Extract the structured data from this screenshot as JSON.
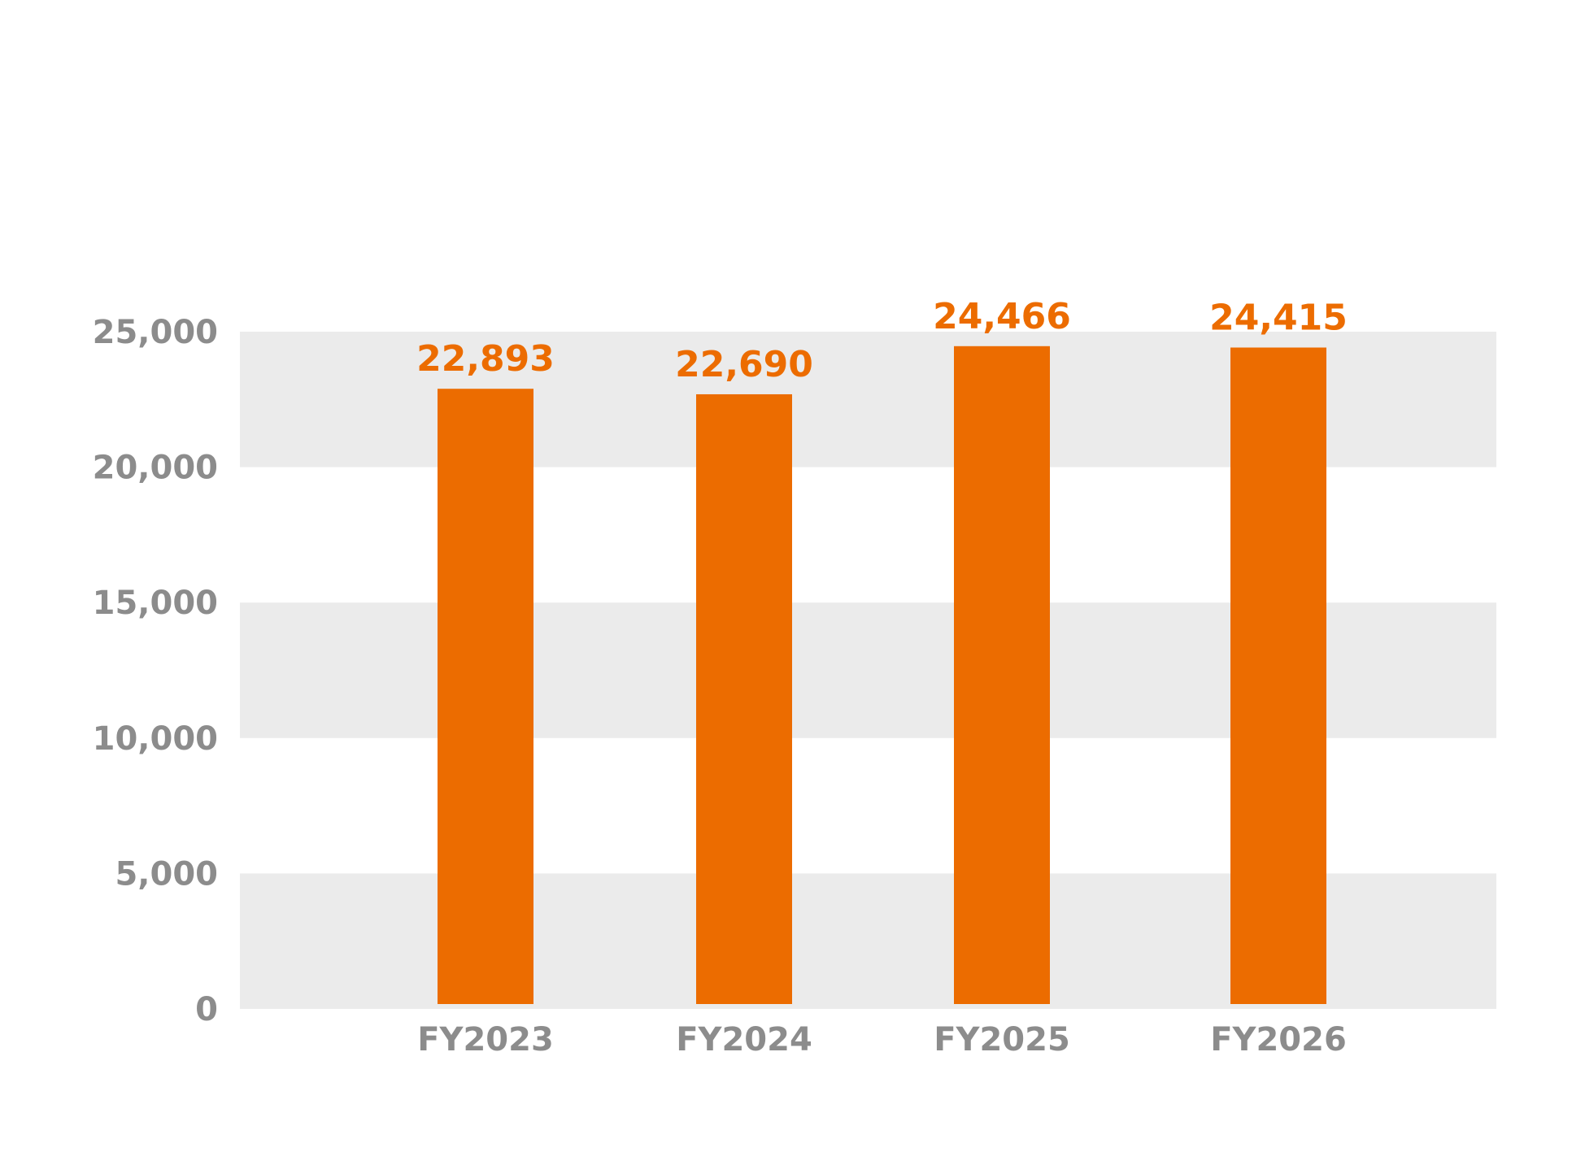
{
  "chart_data": {
    "type": "bar",
    "title": "",
    "xlabel": "",
    "ylabel": "",
    "categories": [
      "FY2023",
      "FY2024",
      "FY2025",
      "FY2026"
    ],
    "values": [
      22893,
      22690,
      24466,
      24415
    ],
    "value_labels": [
      "22,893",
      "22,690",
      "24,466",
      "24,415"
    ],
    "ylim": [
      0,
      25000
    ],
    "y_ticks": [
      0,
      5000,
      10000,
      15000,
      20000,
      25000
    ],
    "y_tick_labels": [
      "0",
      "5,000",
      "10,000",
      "15,000",
      "20,000",
      "25,000"
    ],
    "grid": "alternating horizontal bands",
    "legend": "none",
    "colors": {
      "bar": "#ec6c00",
      "value_label": "#ec6c00",
      "band": "#ebebeb",
      "axis_text": "#8c8c8c"
    }
  }
}
